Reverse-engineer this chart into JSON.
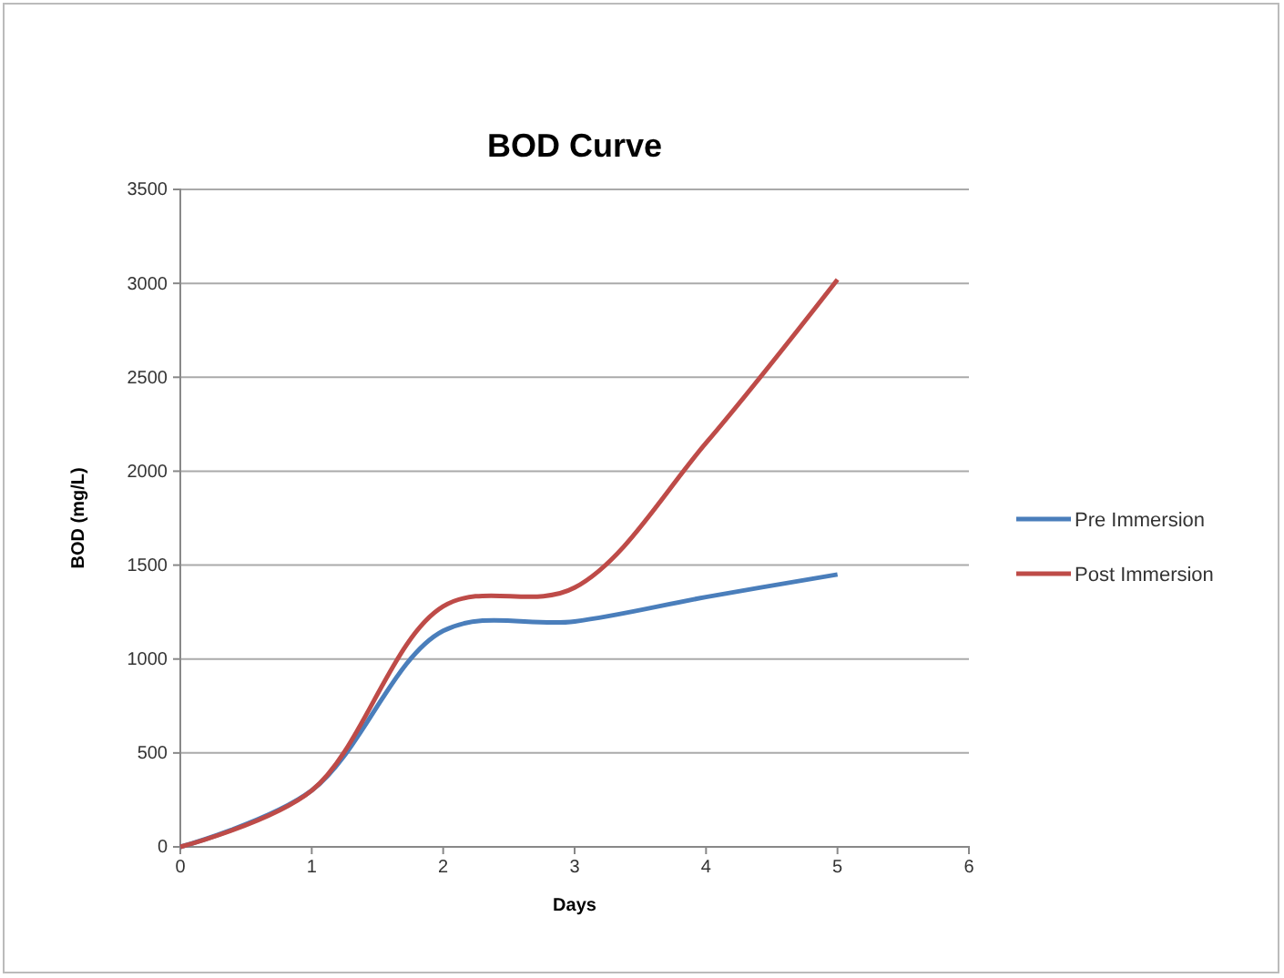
{
  "chart_data": {
    "type": "line",
    "title": "BOD Curve",
    "xlabel": "Days",
    "ylabel": "BOD (mg/L)",
    "x": [
      0,
      1,
      2,
      3,
      4,
      5
    ],
    "series": [
      {
        "name": "Pre Immersion",
        "color": "#4a7ebb",
        "values": [
          0,
          300,
          1150,
          1200,
          1330,
          1450
        ]
      },
      {
        "name": "Post Immersion",
        "color": "#be4b48",
        "values": [
          0,
          300,
          1280,
          1380,
          2150,
          3020
        ]
      }
    ],
    "xlim": [
      0,
      6
    ],
    "xticks": [
      0,
      1,
      2,
      3,
      4,
      5,
      6
    ],
    "ylim": [
      0,
      3500
    ],
    "yticks": [
      0,
      500,
      1000,
      1500,
      2000,
      2500,
      3000,
      3500
    ],
    "grid": "y",
    "legend": "right",
    "marker": "none",
    "line_style": "solid"
  }
}
